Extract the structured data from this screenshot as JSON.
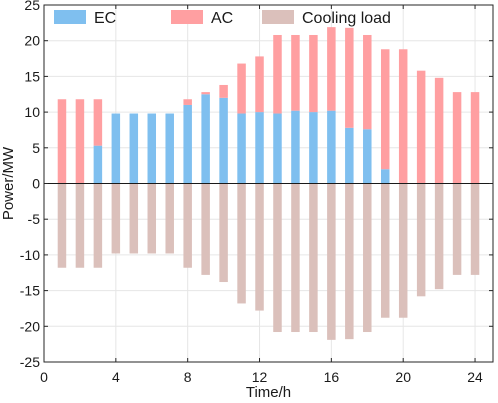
{
  "chart_data": {
    "type": "bar",
    "xlabel": "Time/h",
    "ylabel": "Power/MW",
    "xlim": [
      0,
      25
    ],
    "ylim": [
      -25,
      25
    ],
    "xticks": [
      0,
      4,
      8,
      12,
      16,
      20,
      24
    ],
    "yticks": [
      -25,
      -20,
      -15,
      -10,
      -5,
      0,
      5,
      10,
      15,
      20,
      25
    ],
    "grid": true,
    "stacked": true,
    "legend": {
      "position": "top",
      "orientation": "horizontal"
    },
    "x": [
      1,
      2,
      3,
      4,
      5,
      6,
      7,
      8,
      9,
      10,
      11,
      12,
      13,
      14,
      15,
      16,
      17,
      18,
      19,
      20,
      21,
      22,
      23,
      24
    ],
    "series": [
      {
        "name": "EC",
        "color": "#7fbfef",
        "values": [
          0,
          0,
          5.3,
          9.8,
          9.8,
          9.8,
          9.8,
          11.0,
          12.5,
          12.0,
          9.8,
          10.0,
          9.8,
          10.2,
          10.0,
          10.2,
          7.8,
          7.6,
          2.0,
          0,
          0,
          0,
          0,
          0
        ]
      },
      {
        "name": "AC",
        "color": "#ff9fa1",
        "values": [
          11.8,
          11.8,
          6.5,
          0,
          0,
          0,
          0,
          0.8,
          0.3,
          1.8,
          7.0,
          7.8,
          11.0,
          10.6,
          10.8,
          11.7,
          14.0,
          13.2,
          16.8,
          18.8,
          15.8,
          14.8,
          12.8,
          12.8
        ]
      },
      {
        "name": "Cooling load",
        "color": "#dbc0bb",
        "values": [
          -11.8,
          -11.8,
          -11.8,
          -9.8,
          -9.8,
          -9.8,
          -9.8,
          -11.8,
          -12.8,
          -13.8,
          -16.8,
          -17.8,
          -20.8,
          -20.8,
          -20.8,
          -21.9,
          -21.8,
          -20.8,
          -18.8,
          -18.8,
          -15.8,
          -14.8,
          -12.8,
          -12.8
        ]
      }
    ]
  }
}
